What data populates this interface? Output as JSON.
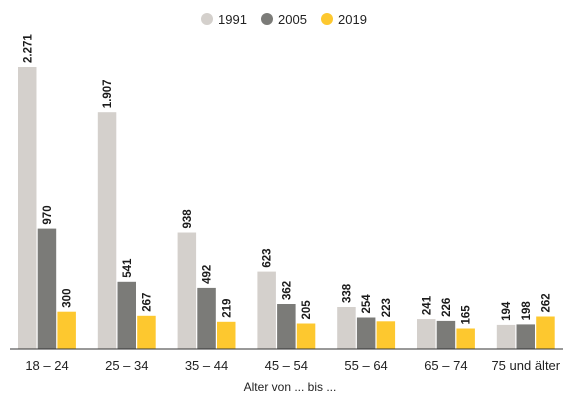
{
  "chart_data": {
    "type": "bar",
    "categories": [
      "18 – 24",
      "25 – 34",
      "35 – 44",
      "45 – 54",
      "55 – 64",
      "65 – 74",
      "75 und älter"
    ],
    "series": [
      {
        "name": "1991",
        "color": "#d4d0cc",
        "values": [
          2271,
          1907,
          938,
          623,
          338,
          241,
          194
        ],
        "labels": [
          "2.271",
          "1.907",
          "938",
          "623",
          "338",
          "241",
          "194"
        ]
      },
      {
        "name": "2005",
        "color": "#7b7b78",
        "values": [
          970,
          541,
          492,
          362,
          254,
          226,
          198
        ],
        "labels": [
          "970",
          "541",
          "492",
          "362",
          "254",
          "226",
          "198"
        ]
      },
      {
        "name": "2019",
        "color": "#fdc82f",
        "values": [
          300,
          267,
          219,
          205,
          223,
          165,
          262
        ],
        "labels": [
          "300",
          "267",
          "219",
          "205",
          "223",
          "165",
          "262"
        ]
      }
    ],
    "xlabel": "Alter von ... bis ...",
    "ylabel": "",
    "ylim": [
      0,
      2500
    ],
    "grid": false,
    "legend": "top-center"
  }
}
